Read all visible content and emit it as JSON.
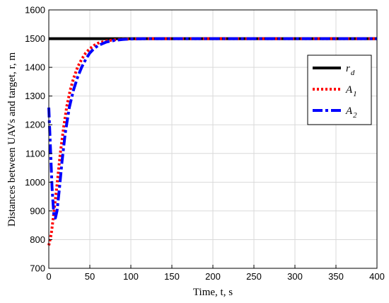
{
  "chart_data": {
    "type": "line",
    "xlabel": "Time, t, s",
    "ylabel": "Distances between UAVs and target,  r, m",
    "xlim": [
      0,
      400
    ],
    "ylim": [
      700,
      1600
    ],
    "xticks": [
      "0",
      "50",
      "100",
      "150",
      "200",
      "250",
      "300",
      "350",
      "400"
    ],
    "yticks": [
      "700",
      "800",
      "900",
      "1000",
      "1100",
      "1200",
      "1300",
      "1400",
      "1500",
      "1600"
    ],
    "grid": true,
    "legend_position": "right",
    "series": [
      {
        "name": "r_d",
        "label_base": "r",
        "label_sub": "d",
        "color": "#000000",
        "style": "solid",
        "x": [
          0,
          400
        ],
        "y": [
          1500,
          1500
        ]
      },
      {
        "name": "A_1",
        "label_base": "A",
        "label_sub": "1",
        "color": "#ff0000",
        "style": "dotted",
        "x": [
          0,
          3,
          6,
          10,
          14,
          18,
          22,
          26,
          30,
          35,
          40,
          45,
          50,
          55,
          60,
          70,
          80,
          90,
          100,
          120,
          150,
          200,
          300,
          400
        ],
        "y": [
          780,
          820,
          890,
          990,
          1100,
          1190,
          1265,
          1320,
          1360,
          1400,
          1428,
          1450,
          1465,
          1476,
          1484,
          1492,
          1496,
          1498,
          1499,
          1500,
          1500,
          1500,
          1500,
          1500
        ]
      },
      {
        "name": "A_2",
        "label_base": "A",
        "label_sub": "2",
        "color": "#0000ff",
        "style": "dashdot",
        "x": [
          0,
          2,
          4,
          6,
          8,
          10,
          13,
          16,
          20,
          25,
          30,
          35,
          40,
          45,
          50,
          55,
          60,
          70,
          80,
          90,
          100,
          120,
          150,
          200,
          300,
          400
        ],
        "y": [
          1260,
          1120,
          980,
          890,
          875,
          900,
          980,
          1070,
          1170,
          1260,
          1320,
          1365,
          1400,
          1428,
          1450,
          1465,
          1476,
          1488,
          1494,
          1497,
          1499,
          1500,
          1500,
          1500,
          1500,
          1500
        ]
      }
    ]
  }
}
